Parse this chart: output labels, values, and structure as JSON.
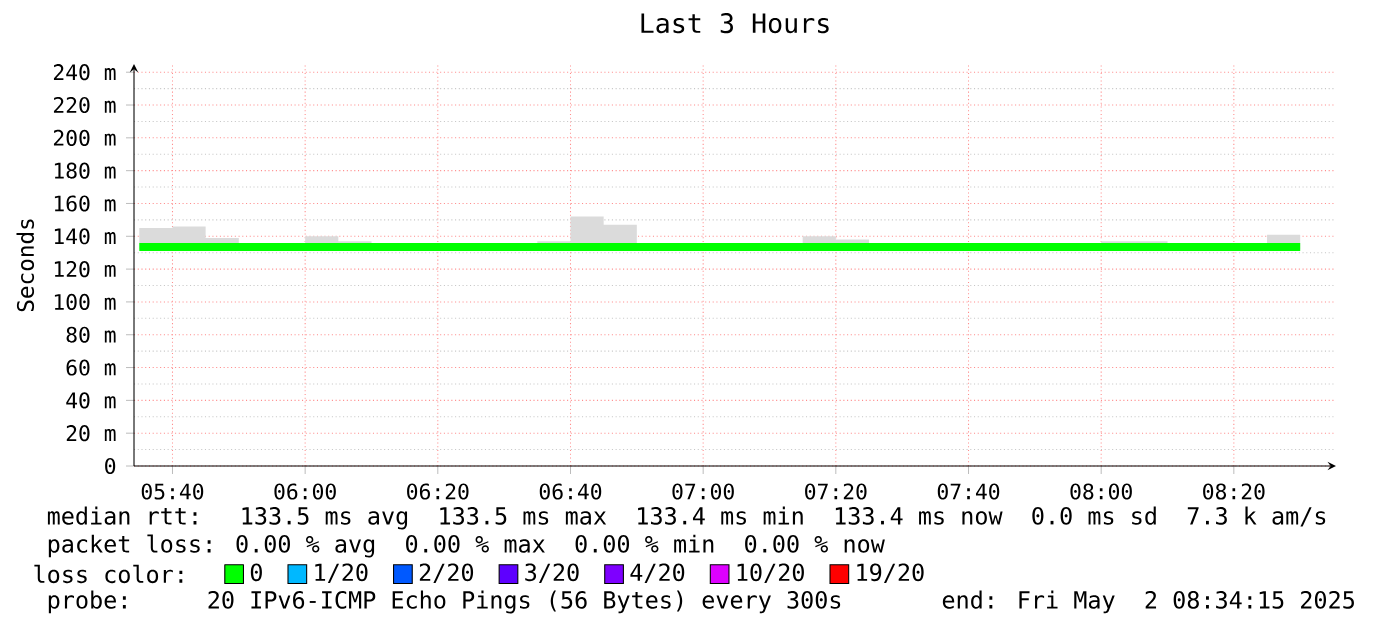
{
  "chart_data": {
    "type": "line",
    "title": "Last 3 Hours",
    "ylabel": "Seconds",
    "legend_title": "loss color:",
    "xlim": [
      5.57,
      8.59
    ],
    "ylim": [
      0,
      245
    ],
    "xticks": [
      {
        "value": 5.6667,
        "label": "05:40"
      },
      {
        "value": 6,
        "label": "06:00"
      },
      {
        "value": 6.3333,
        "label": "06:20"
      },
      {
        "value": 6.6667,
        "label": "06:40"
      },
      {
        "value": 7,
        "label": "07:00"
      },
      {
        "value": 7.3333,
        "label": "07:20"
      },
      {
        "value": 7.6667,
        "label": "07:40"
      },
      {
        "value": 8,
        "label": "08:00"
      },
      {
        "value": 8.3333,
        "label": "08:20"
      }
    ],
    "yticks": [
      0,
      {
        "value": 20,
        "label": "20 m"
      },
      {
        "value": 40,
        "label": "40 m"
      },
      {
        "value": 60,
        "label": "60 m"
      },
      {
        "value": 80,
        "label": "80 m"
      },
      {
        "value": 100,
        "label": "100 m"
      },
      {
        "value": 120,
        "label": "120 m"
      },
      {
        "value": 140,
        "label": "140 m"
      },
      {
        "value": 160,
        "label": "160 m"
      },
      {
        "value": 180,
        "label": "180 m"
      },
      {
        "value": 200,
        "label": "200 m"
      },
      {
        "value": 220,
        "label": "220 m"
      },
      {
        "value": 240,
        "label": "240 m"
      }
    ],
    "grid": true,
    "legend": "bottom",
    "series": [
      {
        "name": "0",
        "color": "#00ff00",
        "type": "step",
        "x": [
          5.5833,
          5.6667,
          5.75,
          5.8333,
          5.9167,
          6,
          6.0833,
          6.1667,
          6.25,
          6.3333,
          6.4167,
          6.5,
          6.5833,
          6.6667,
          6.75,
          6.8333,
          6.9167,
          7,
          7.0833,
          7.1667,
          7.25,
          7.3333,
          7.4167,
          7.5,
          7.5833,
          7.6667,
          7.75,
          7.8333,
          7.9167,
          8,
          8.0833,
          8.1667,
          8.25,
          8.3333,
          8.4167,
          8.5
        ],
        "values": [
          133.5,
          133.5,
          133.5,
          133.5,
          133.5,
          133.5,
          133.5,
          133.5,
          133.5,
          133.5,
          133.5,
          133.5,
          133.5,
          133.5,
          133.5,
          133.5,
          133.5,
          133.5,
          133.5,
          133.5,
          133.5,
          133.5,
          133.5,
          133.5,
          133.5,
          133.5,
          133.5,
          133.5,
          133.5,
          133.5,
          133.5,
          133.5,
          133.5,
          133.5,
          133.5,
          133.5
        ],
        "lower": [
          132,
          132,
          132,
          132,
          132,
          132,
          132,
          132,
          132,
          132,
          132,
          132,
          132,
          132,
          132,
          132,
          132,
          132,
          132,
          132,
          132,
          132,
          132,
          132,
          132,
          132,
          132,
          132,
          132,
          132,
          132,
          132,
          132,
          132,
          132,
          132
        ],
        "upper": [
          145,
          146,
          139,
          135,
          135,
          140,
          137,
          135,
          135,
          135,
          135,
          135,
          137,
          152,
          147,
          135,
          135,
          135,
          135,
          135,
          140,
          138,
          135,
          135,
          135,
          135,
          135,
          135,
          135,
          137,
          137,
          135,
          135,
          135,
          141,
          141
        ]
      },
      {
        "name": "1/20",
        "color": "#00b8ff",
        "values": [
          null
        ]
      },
      {
        "name": "2/20",
        "color": "#0059ff",
        "values": [
          null
        ]
      },
      {
        "name": "3/20",
        "color": "#5e00ff",
        "values": [
          null
        ]
      },
      {
        "name": "4/20",
        "color": "#7e00ff",
        "values": [
          null
        ]
      },
      {
        "name": "10/20",
        "color": "#dd00ff",
        "values": [
          null
        ]
      },
      {
        "name": "19/20",
        "color": "#ff0000",
        "values": [
          null
        ]
      }
    ],
    "annotations": [
      "median rtt:  133.5 ms avg  133.5 ms max  133.4 ms min  133.4 ms now  0.0 ms sd  7.3 k am/s",
      "packet loss: 0.00 % avg  0.00 % max  0.00 % min  0.00 % now",
      "probe:    20 IPv6-ICMP Echo Pings (56 Bytes) every 300s       end: Fri May  2 08:34:15 2025"
    ]
  }
}
